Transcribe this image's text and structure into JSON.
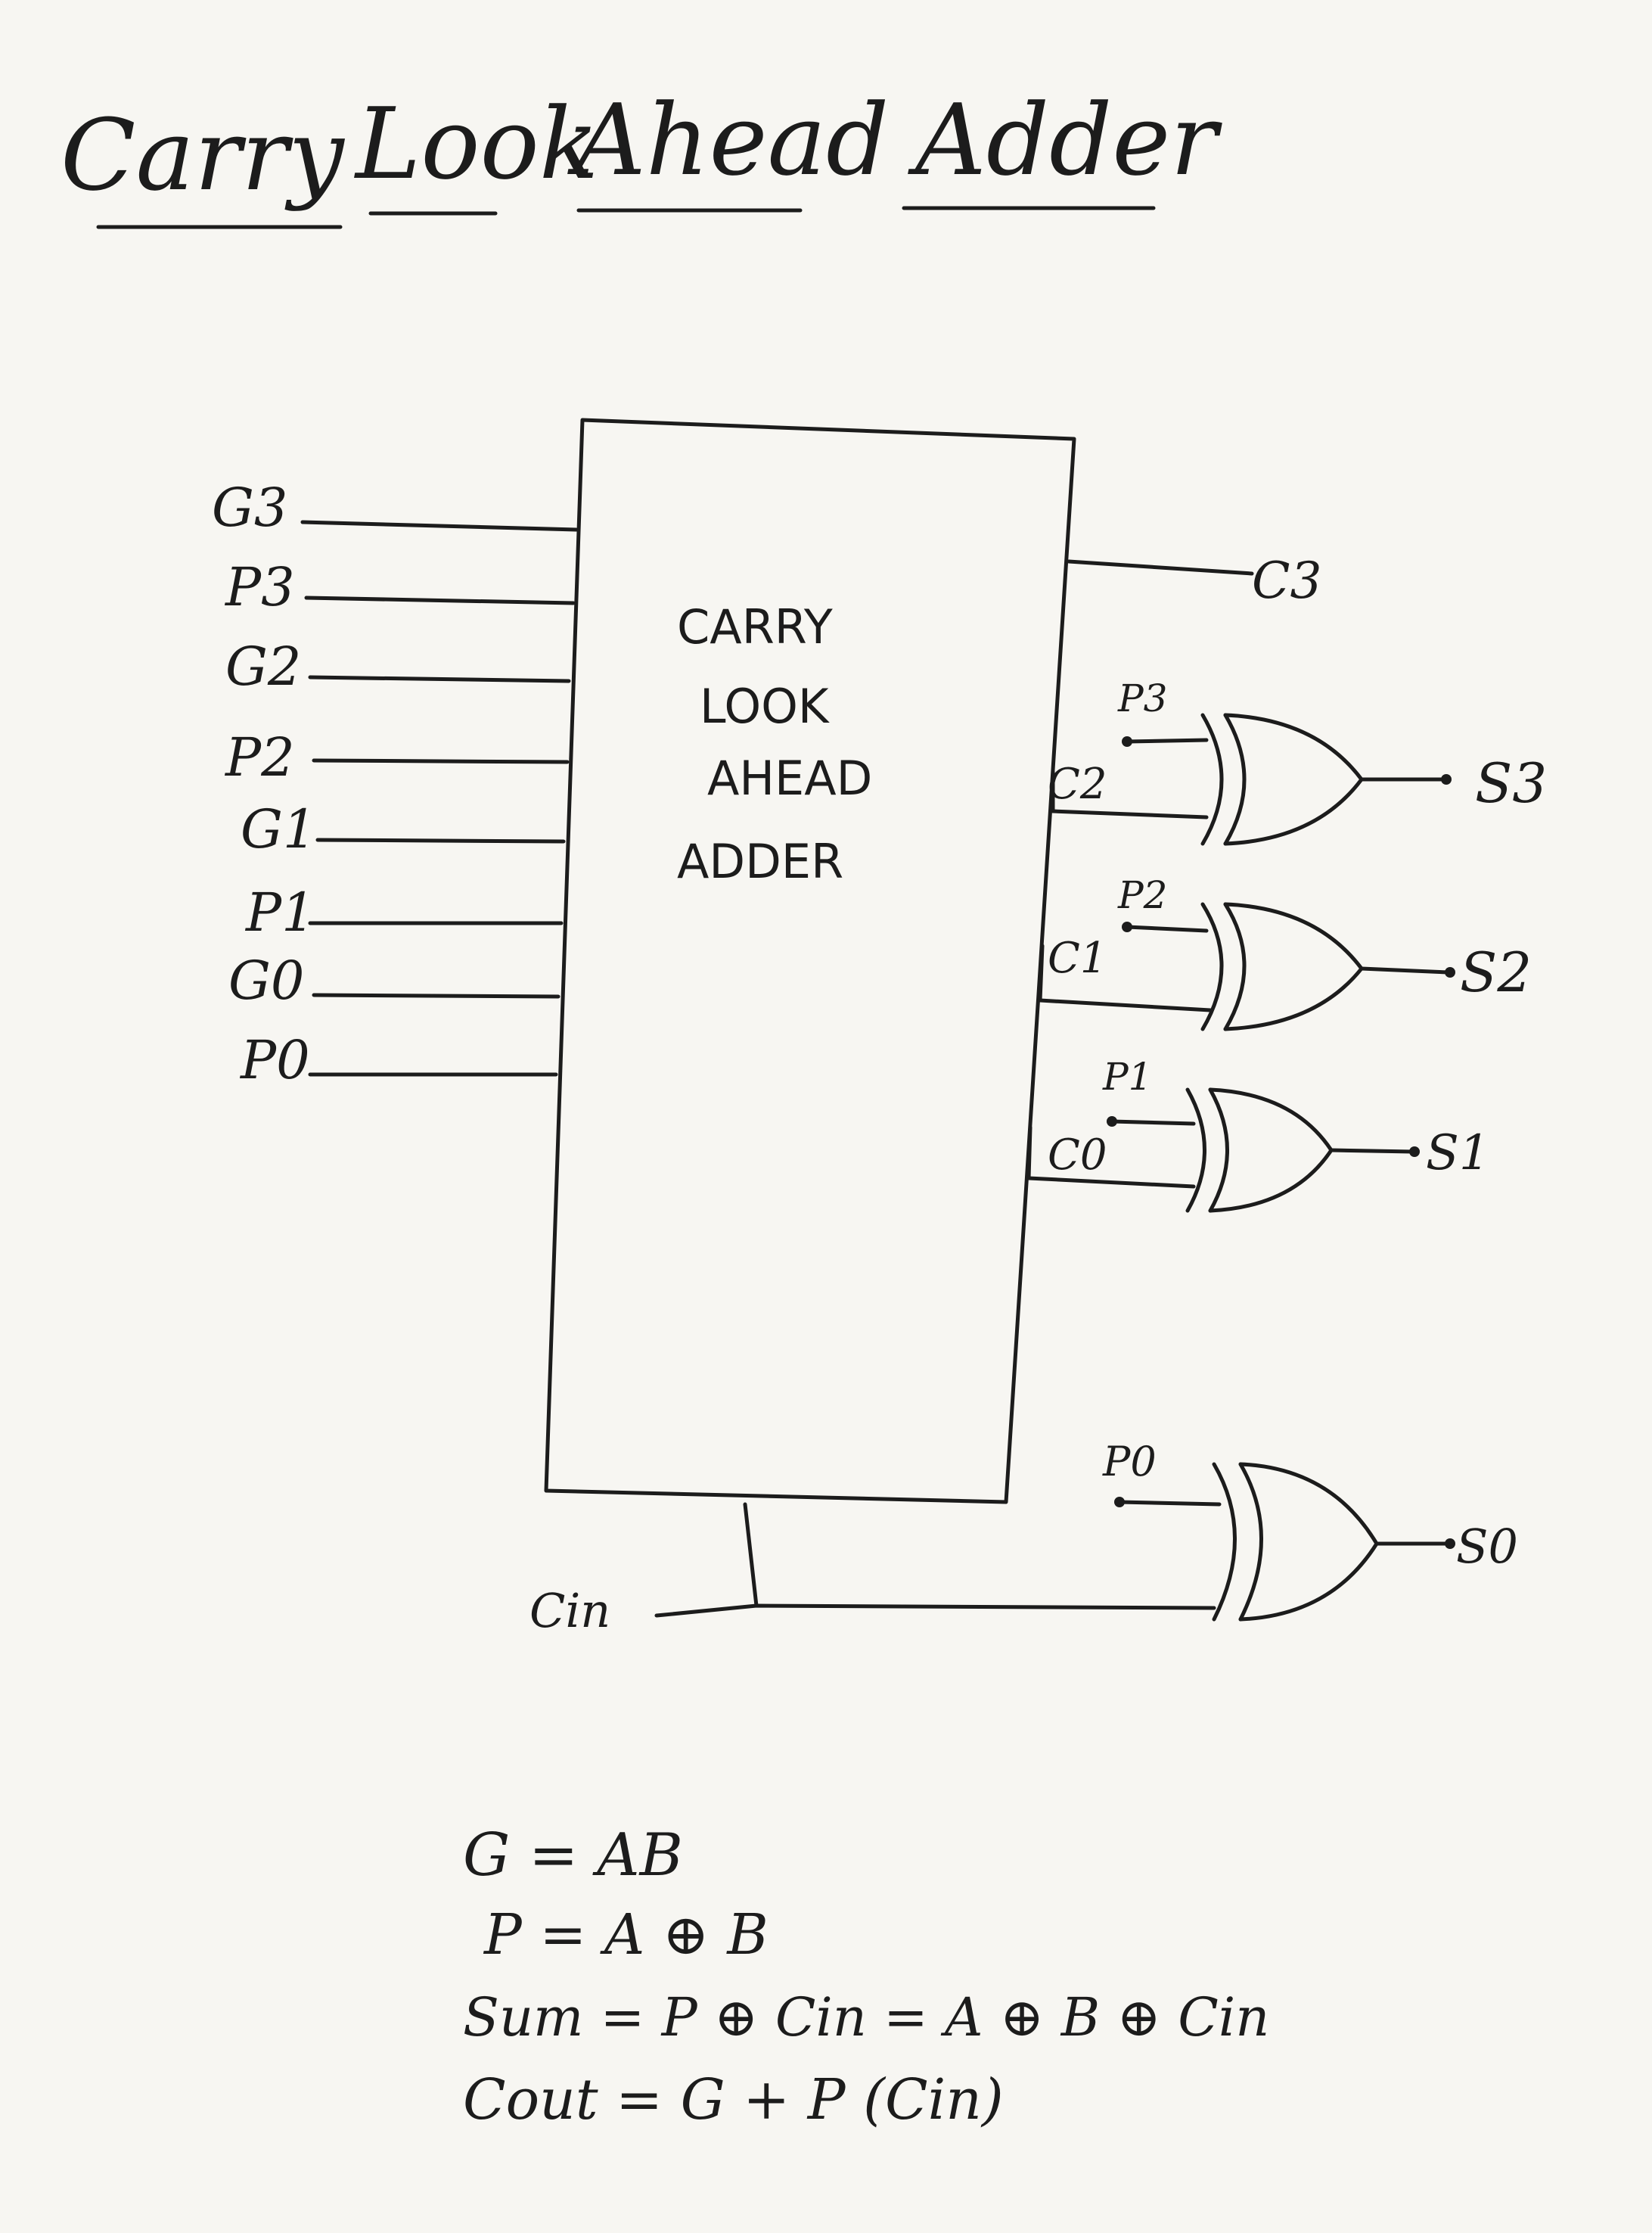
{
  "title": {
    "words": [
      "Carry",
      "Look",
      "Ahead",
      "Adder"
    ]
  },
  "block": {
    "lines": [
      "CARRY",
      "LOOK",
      "AHEAD",
      "ADDER"
    ]
  },
  "inputs": [
    {
      "label": "G3"
    },
    {
      "label": "P3"
    },
    {
      "label": "G2"
    },
    {
      "label": "P2"
    },
    {
      "label": "G1"
    },
    {
      "label": "P1"
    },
    {
      "label": "G0"
    },
    {
      "label": "P0"
    }
  ],
  "carry_out": {
    "label": "C3"
  },
  "carry_in": {
    "label": "Cin"
  },
  "gates": [
    {
      "carry": "C2",
      "propagate": "P3",
      "sum": "S3"
    },
    {
      "carry": "C1",
      "propagate": "P2",
      "sum": "S2"
    },
    {
      "carry": "C0",
      "propagate": "P1",
      "sum": "S1"
    },
    {
      "carry": "",
      "propagate": "P0",
      "sum": "S0"
    }
  ],
  "equations": [
    {
      "text": "G = AB"
    },
    {
      "text": "P = A ⊕ B"
    },
    {
      "text": "Sum = P ⊕ Cin = A ⊕ B ⊕ Cin"
    },
    {
      "text": "Cout = G + P (Cin)"
    }
  ],
  "colors": {
    "ink": "#1c1c1c",
    "paper": "#f7f6f2"
  }
}
